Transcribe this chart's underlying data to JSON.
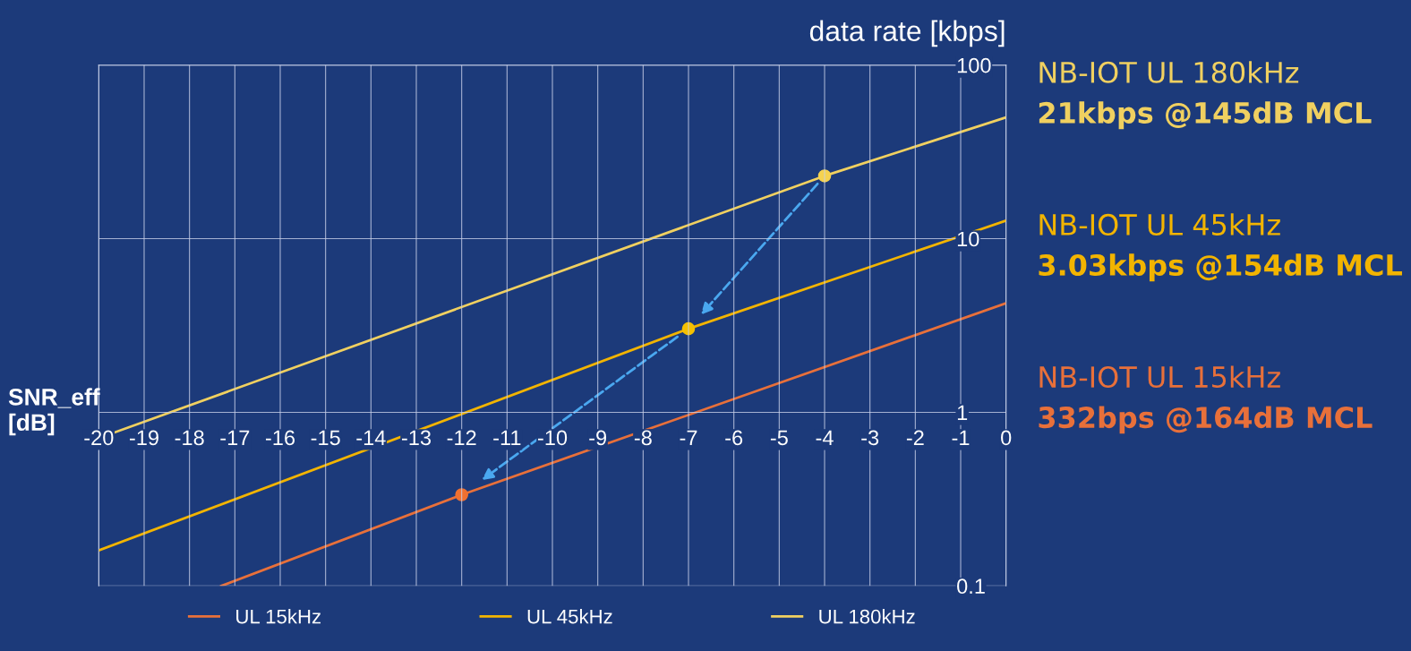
{
  "chart_data": {
    "type": "line",
    "xlabel": "SNR_eff\n[dB]",
    "ylabel": "data rate [kbps]",
    "xlim": [
      -20,
      0
    ],
    "ylim": [
      0.1,
      100
    ],
    "log": "y",
    "xticks": [
      -20,
      -19,
      -18,
      -17,
      -16,
      -15,
      -14,
      -13,
      -12,
      -11,
      -10,
      -9,
      -8,
      -7,
      -6,
      -5,
      -4,
      -3,
      -2,
      -1,
      0
    ],
    "yticks": [
      0.1,
      1,
      10,
      100
    ],
    "grid": true,
    "legend": "bottom",
    "marker": "none",
    "line_style": "solid",
    "series": [
      {
        "name": "UL 15kHz",
        "color": "#e8703a",
        "x": [
          -17.3,
          -12,
          0
        ],
        "values": [
          0.1,
          0.335,
          4.25
        ]
      },
      {
        "name": "UL 45kHz",
        "color": "#f2b400",
        "x": [
          -20,
          -7,
          0
        ],
        "values": [
          0.16,
          3.03,
          12.7
        ]
      },
      {
        "name": "UL 180kHz",
        "color": "#f0d060",
        "x": [
          -20,
          -4,
          0
        ],
        "values": [
          0.71,
          23,
          50
        ]
      },
      {
        "type": "scatter",
        "marker": "circle",
        "x": [
          -4,
          -7,
          -12
        ],
        "values": [
          23,
          3.03,
          0.335
        ],
        "colors": [
          "#f5d250",
          "#f5c000",
          "#f07030"
        ]
      }
    ],
    "annotations": [
      "NB-IOT UL 180kHz",
      "21kbps @145dB MCL",
      "NB-IOT UL 45kHz",
      "3.03kbps @154dB MCL",
      "NB-IOT UL 15kHz",
      "332bps @164dB MCL"
    ]
  }
}
